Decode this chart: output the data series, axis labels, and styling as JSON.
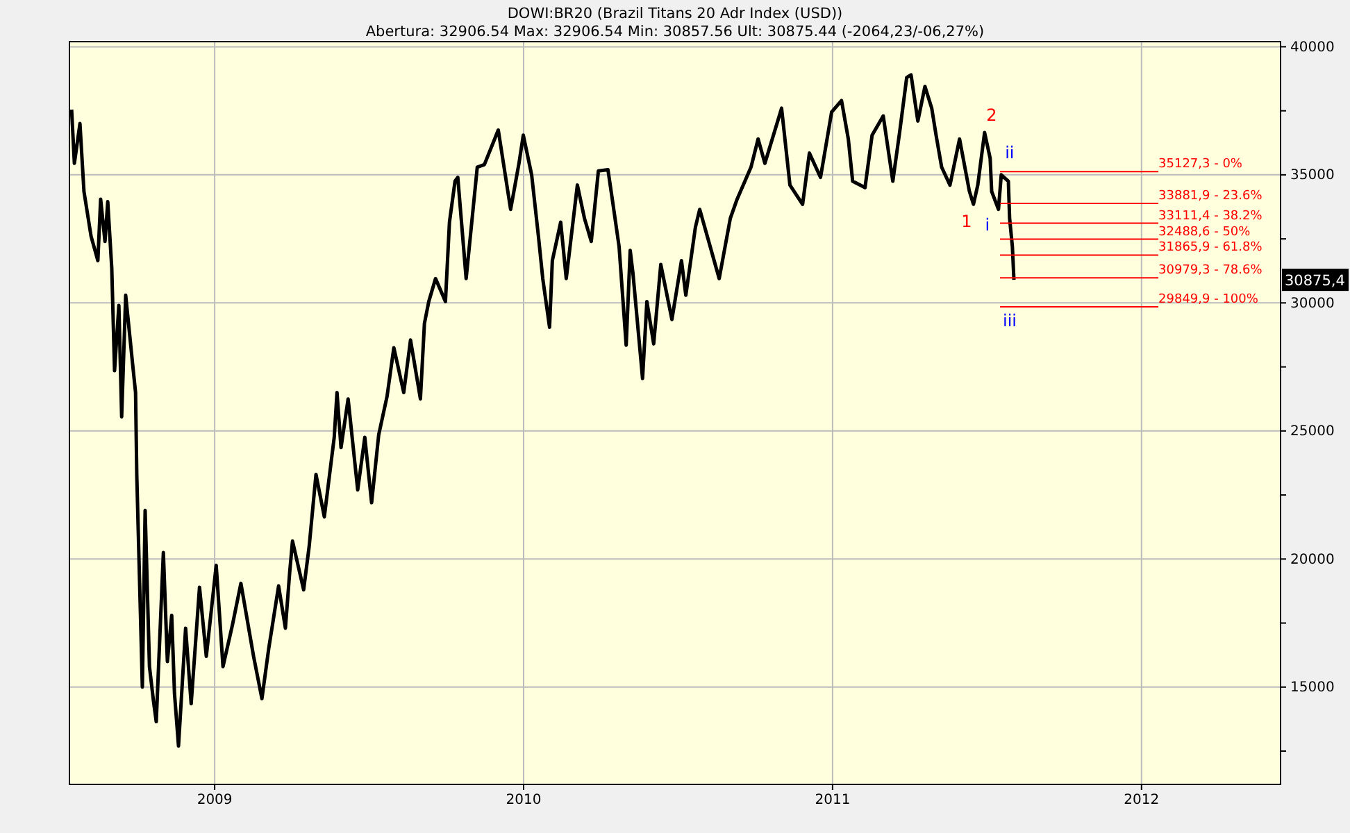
{
  "chart_data": {
    "type": "line",
    "title": "DOWI:BR20 (Brazil Titans 20 Adr Index (USD))",
    "subtitle": "Abertura: 32906.54 Max: 32906.54 Min: 30857.56 Ult: 30875.44 (-2064,23/-06,27%)",
    "series": [
      {
        "color": "#000000",
        "x": [
          2008.537,
          2008.546,
          2008.564,
          2008.577,
          2008.6,
          2008.622,
          2008.631,
          2008.645,
          2008.654,
          2008.667,
          2008.676,
          2008.69,
          2008.699,
          2008.712,
          2008.735,
          2008.744,
          2008.748,
          2008.766,
          2008.775,
          2008.789,
          2008.802,
          2008.811,
          2008.834,
          2008.847,
          2008.861,
          2008.87,
          2008.883,
          2008.906,
          2008.924,
          2008.951,
          2008.973,
          2009.005,
          2009.027,
          2009.058,
          2009.085,
          2009.126,
          2009.153,
          2009.175,
          2009.207,
          2009.229,
          2009.243,
          2009.252,
          2009.288,
          2009.306,
          2009.328,
          2009.355,
          2009.387,
          2009.396,
          2009.409,
          2009.432,
          2009.463,
          2009.486,
          2009.508,
          2009.531,
          2009.558,
          2009.58,
          2009.612,
          2009.634,
          2009.666,
          2009.679,
          2009.693,
          2009.715,
          2009.747,
          2009.76,
          2009.778,
          2009.787,
          2009.814,
          2009.85,
          2009.873,
          2009.918,
          2009.958,
          2009.985,
          2009.999,
          2010.026,
          2010.048,
          2010.062,
          2010.084,
          2010.093,
          2010.12,
          2010.138,
          2010.174,
          2010.197,
          2010.219,
          2010.242,
          2010.273,
          2010.287,
          2010.309,
          2010.332,
          2010.345,
          2010.354,
          2010.385,
          2010.399,
          2010.421,
          2010.444,
          2010.48,
          2010.511,
          2010.525,
          2010.556,
          2010.57,
          2010.633,
          2010.669,
          2010.691,
          2010.736,
          2010.759,
          2010.781,
          2010.835,
          2010.862,
          2010.903,
          2010.925,
          2010.961,
          2010.997,
          2011.029,
          2011.051,
          2011.065,
          2011.105,
          2011.128,
          2011.164,
          2011.195,
          2011.218,
          2011.24,
          2011.254,
          2011.276,
          2011.299,
          2011.321,
          2011.335,
          2011.353,
          2011.38,
          2011.411,
          2011.443,
          2011.456,
          2011.47,
          2011.492,
          2011.51,
          2011.515,
          2011.537,
          2011.546,
          2011.569,
          2011.573,
          2011.582,
          2011.587
        ],
        "values": [
          37550,
          35450,
          37000,
          34350,
          32600,
          31650,
          34050,
          32400,
          33950,
          31350,
          27350,
          29900,
          25550,
          30300,
          27550,
          26500,
          23250,
          15000,
          21900,
          15800,
          14450,
          13650,
          20250,
          16000,
          17800,
          14750,
          12700,
          17300,
          14350,
          18900,
          16200,
          19750,
          15800,
          17450,
          19050,
          16200,
          14550,
          16500,
          18950,
          17300,
          19500,
          20700,
          18800,
          20500,
          23300,
          21650,
          24750,
          26500,
          24350,
          26250,
          22700,
          24750,
          22200,
          24850,
          26350,
          28250,
          26500,
          28550,
          26250,
          29200,
          30050,
          30950,
          30050,
          33150,
          34750,
          34900,
          30950,
          35300,
          35400,
          36750,
          33650,
          35450,
          36550,
          35000,
          32600,
          30950,
          29050,
          31650,
          33150,
          30950,
          34600,
          33300,
          32400,
          35150,
          35200,
          34050,
          32200,
          28350,
          32050,
          31150,
          27050,
          30050,
          28400,
          31500,
          29350,
          31650,
          30300,
          32950,
          33650,
          30950,
          33300,
          34050,
          35300,
          36400,
          35450,
          37600,
          34600,
          33850,
          35850,
          34900,
          37450,
          37900,
          36400,
          34750,
          34500,
          36550,
          37300,
          34750,
          36750,
          38800,
          38900,
          37100,
          38450,
          37600,
          36550,
          35300,
          34600,
          36400,
          34350,
          33850,
          34600,
          36650,
          35650,
          34350,
          33650,
          35000,
          34750,
          33300,
          32200,
          30900
        ]
      }
    ],
    "xlim": [
      2008.53,
      2012.45
    ],
    "xticks": [
      2009,
      2010,
      2011,
      2012
    ],
    "ylim": [
      11200,
      40200
    ],
    "yticks": [
      {
        "value": 12500,
        "label": null
      },
      15000,
      {
        "value": 17500,
        "label": null
      },
      20000,
      {
        "value": 22500,
        "label": null
      },
      25000,
      {
        "value": 27500,
        "label": null
      },
      30000,
      {
        "value": 32500,
        "label": null
      },
      35000,
      {
        "value": 37500,
        "label": null
      },
      40000
    ],
    "grid": true,
    "marker": "none",
    "line_style": "solid",
    "ref_lines": [
      {
        "axis": "y",
        "value": 35127.3,
        "label": "35127,3 - 0%",
        "color": "#ff0000"
      },
      {
        "axis": "y",
        "value": 33881.9,
        "label": "33881,9 - 23.6%",
        "color": "#ff0000"
      },
      {
        "axis": "y",
        "value": 33111.4,
        "label": "33111,4 - 38.2%",
        "color": "#ff0000"
      },
      {
        "axis": "y",
        "value": 32488.6,
        "label": "32488,6 - 50%",
        "color": "#ff0000"
      },
      {
        "axis": "y",
        "value": 31865.9,
        "label": "31865,9 - 61.8%",
        "color": "#ff0000"
      },
      {
        "axis": "y",
        "value": 30979.3,
        "label": "30979,3 - 78.6%",
        "color": "#ff0000"
      },
      {
        "axis": "y",
        "value": 29849.9,
        "label": "29849,9 - 100%",
        "color": "#ff0000"
      }
    ],
    "annotations": [
      {
        "text": "1",
        "x": 2011.456,
        "y": 33850
      },
      {
        "text": "2",
        "x": 2011.492,
        "y": 36650
      },
      {
        "text": "i",
        "x": 2011.537,
        "y": 33650
      },
      {
        "text": "ii",
        "x": 2011.546,
        "y": 35000
      },
      {
        "text": "iii",
        "x": 2011.587,
        "y": 30900
      },
      "30875,4"
    ]
  }
}
